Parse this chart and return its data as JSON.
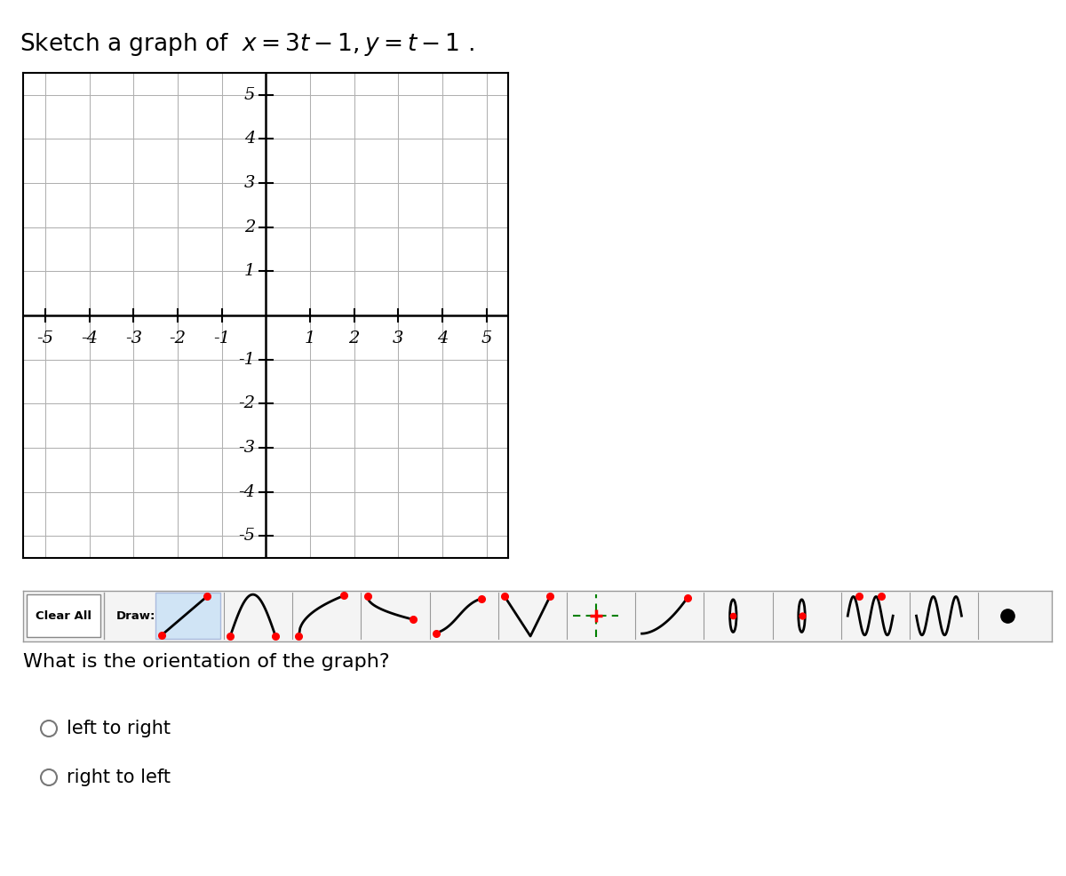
{
  "title_prefix": "Sketch a graph of  ",
  "title_math": "$x = 3t-1, y = t-1$",
  "title_suffix": " .",
  "title_fontsize": 19,
  "xlim": [
    -5.5,
    5.5
  ],
  "ylim": [
    -5.5,
    5.5
  ],
  "xticks": [
    -5,
    -4,
    -3,
    -2,
    -1,
    1,
    2,
    3,
    4,
    5
  ],
  "yticks": [
    -5,
    -4,
    -3,
    -2,
    -1,
    1,
    2,
    3,
    4,
    5
  ],
  "grid_color": "#b0b0b0",
  "axis_color": "#000000",
  "tick_fontsize": 14,
  "bg_color": "#ffffff",
  "question_text": "What is the orientation of the graph?",
  "question_fontsize": 16,
  "option1": "left to right",
  "option2": "right to left",
  "option_fontsize": 15,
  "toolbar_bg": "#dce9f7",
  "toolbar_border": "#aaaaaa"
}
